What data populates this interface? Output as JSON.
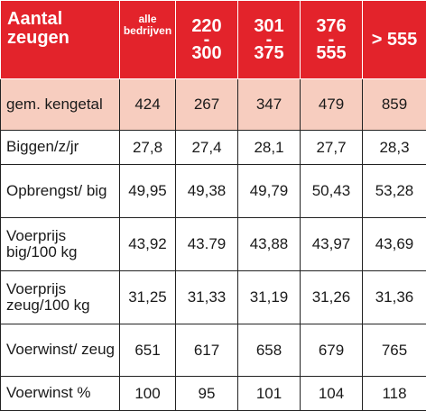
{
  "table": {
    "header": {
      "label": "Aantal zeugen",
      "all": "alle bedrijven",
      "ranges": [
        {
          "from": "220",
          "dash": "-",
          "to": "300"
        },
        {
          "from": "301",
          "dash": "-",
          "to": "375"
        },
        {
          "from": "376",
          "dash": "-",
          "to": "555"
        }
      ],
      "top": "> 555"
    },
    "rows": [
      {
        "label": "gem. kengetal",
        "values": [
          "424",
          "267",
          "347",
          "479",
          "859"
        ]
      },
      {
        "label": "Biggen/z/jr",
        "values": [
          "27,8",
          "27,4",
          "28,1",
          "27,7",
          "28,3"
        ]
      },
      {
        "label": "Opbrengst/ big",
        "values": [
          "49,95",
          "49,38",
          "49,79",
          "50,43",
          "53,28"
        ]
      },
      {
        "label": "Voerprijs big/100 kg",
        "values": [
          "43,92",
          "43.79",
          "43,88",
          "43,97",
          "43,69"
        ]
      },
      {
        "label": "Voerprijs zeug/100 kg",
        "values": [
          "31,25",
          "31,33",
          "31,19",
          "31,26",
          "31,36"
        ]
      },
      {
        "label": "Voerwinst/ zeug",
        "values": [
          "651",
          "617",
          "658",
          "679",
          "765"
        ]
      },
      {
        "label": "Voerwinst %",
        "values": [
          "100",
          "95",
          "101",
          "104",
          "118"
        ]
      }
    ],
    "colors": {
      "header": "#e3232b",
      "highlight": "#f7cdbf"
    }
  }
}
